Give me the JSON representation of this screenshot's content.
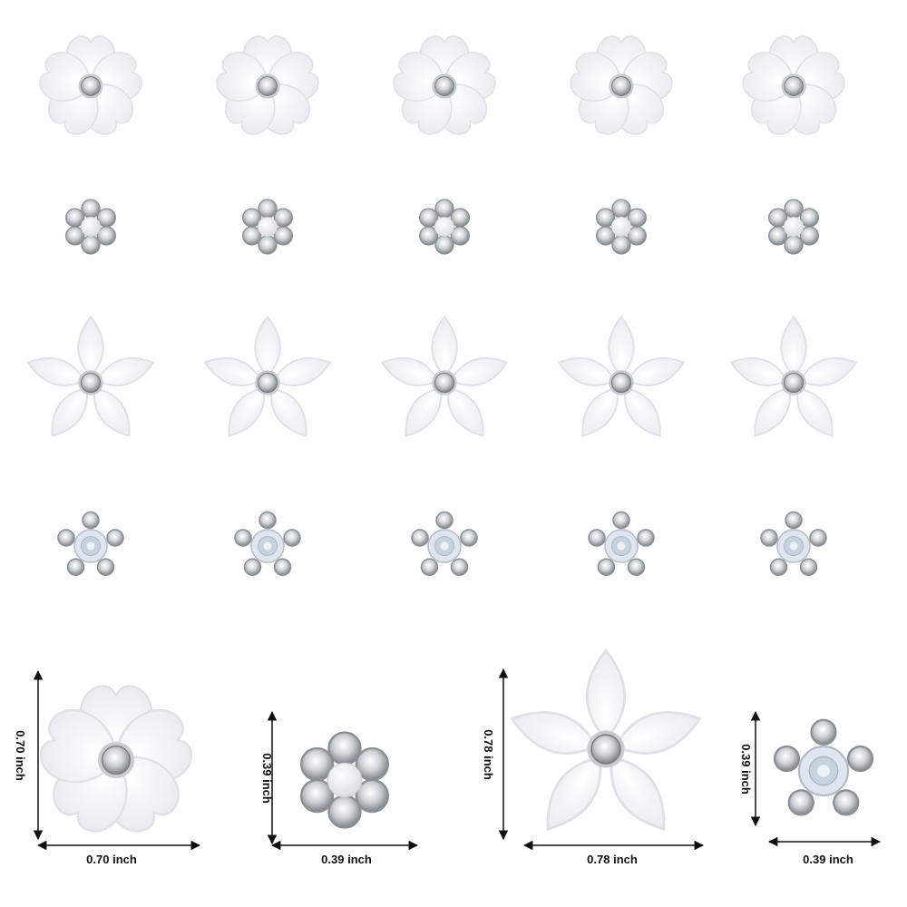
{
  "dimensions": [
    {
      "height": "0.70 inch",
      "width": "0.70 inch"
    },
    {
      "height": "0.39 inch",
      "width": "0.39 inch"
    },
    {
      "height": "0.78 inch",
      "width": "0.78 inch"
    },
    {
      "height": "0.39 inch",
      "width": "0.39 inch"
    }
  ]
}
